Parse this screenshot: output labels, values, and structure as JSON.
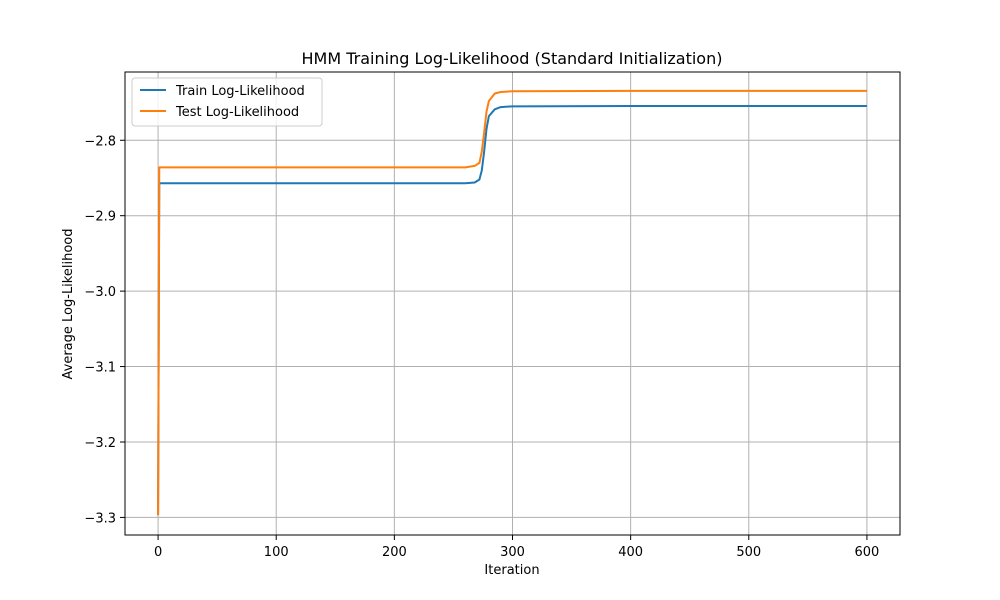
{
  "chart_data": {
    "type": "line",
    "title": "HMM Training Log-Likelihood (Standard Initialization)",
    "xlabel": "Iteration",
    "ylabel": "Average Log-Likelihood",
    "xlim": [
      -28,
      628
    ],
    "ylim": [
      -3.3233,
      -2.7095
    ],
    "xticks": [
      0,
      100,
      200,
      300,
      400,
      500,
      600
    ],
    "yticks": [
      -3.3,
      -3.2,
      -3.1,
      -3.0,
      -2.9,
      -2.8
    ],
    "ytick_labels": [
      "−3.3",
      "−3.2",
      "−3.1",
      "−3.0",
      "−2.9",
      "−2.8"
    ],
    "xtick_labels": [
      "0",
      "100",
      "200",
      "300",
      "400",
      "500",
      "600"
    ],
    "grid": true,
    "legend_position": "top-left",
    "series": [
      {
        "name": "Train Log-Likelihood",
        "color": "#1f77b4",
        "x": [
          0,
          1,
          2,
          100,
          200,
          260,
          268,
          272,
          274,
          276,
          278,
          280,
          285,
          290,
          300,
          400,
          500,
          600
        ],
        "y": [
          -3.297,
          -2.857,
          -2.857,
          -2.857,
          -2.857,
          -2.857,
          -2.856,
          -2.852,
          -2.84,
          -2.815,
          -2.785,
          -2.768,
          -2.759,
          -2.756,
          -2.755,
          -2.7545,
          -2.7545,
          -2.7545
        ]
      },
      {
        "name": "Test Log-Likelihood",
        "color": "#ff7f0e",
        "x": [
          0,
          1,
          2,
          100,
          200,
          260,
          268,
          272,
          274,
          276,
          278,
          280,
          285,
          290,
          300,
          400,
          500,
          600
        ],
        "y": [
          -3.297,
          -2.836,
          -2.836,
          -2.836,
          -2.836,
          -2.836,
          -2.834,
          -2.83,
          -2.815,
          -2.79,
          -2.762,
          -2.748,
          -2.738,
          -2.736,
          -2.735,
          -2.7345,
          -2.7345,
          -2.7345
        ]
      }
    ]
  }
}
